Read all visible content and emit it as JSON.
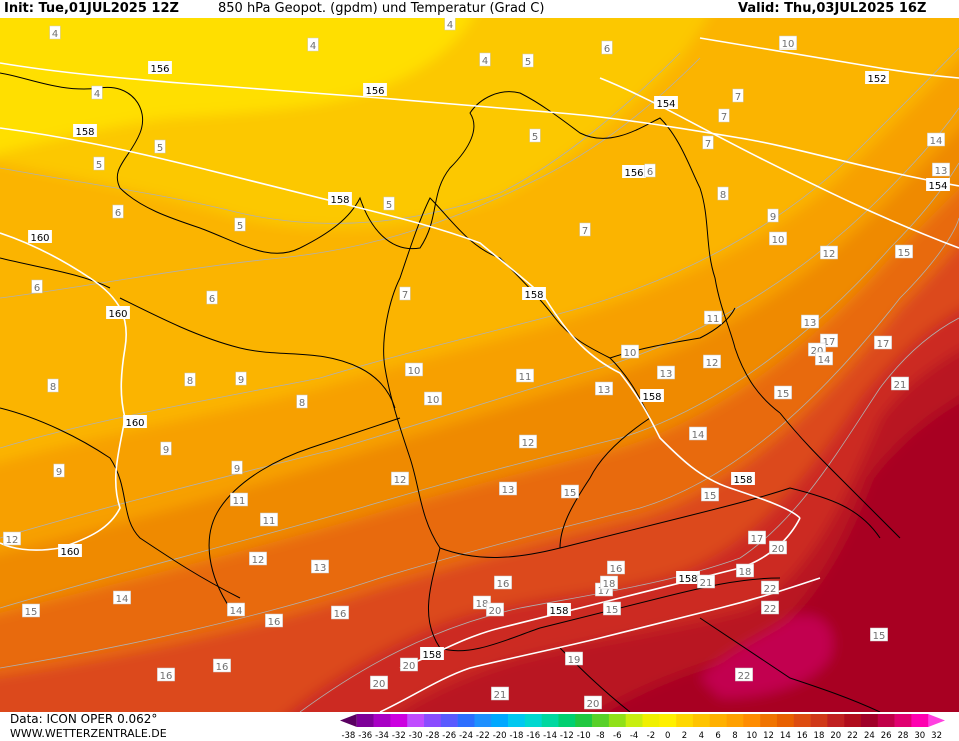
{
  "header": {
    "init": "Init: Tue,01JUL2025 12Z",
    "title": "850 hPa Geopot. (gpdm) und Temperatur (Grad C)",
    "valid": "Valid: Thu,03JUL2025 16Z"
  },
  "footer": {
    "data_source": "Data: ICON OPER 0.062°",
    "website": "WWW.WETTERZENTRALE.DE"
  },
  "legend": {
    "ticks": [
      "-38",
      "-36",
      "-34",
      "-32",
      "-30",
      "-28",
      "-26",
      "-24",
      "-22",
      "-20",
      "-18",
      "-16",
      "-14",
      "-12",
      "-10",
      "-8",
      "-6",
      "-4",
      "-2",
      "0",
      "2",
      "4",
      "6",
      "8",
      "10",
      "12",
      "14",
      "16",
      "18",
      "20",
      "22",
      "24",
      "26",
      "28",
      "30",
      "32"
    ],
    "colors": [
      "#5a0061",
      "#7e0098",
      "#a800c4",
      "#cc00e0",
      "#c04cff",
      "#8a4cff",
      "#5a5aff",
      "#2c6eff",
      "#1e90ff",
      "#00a8ff",
      "#00c8f0",
      "#00d8d0",
      "#00d8a0",
      "#00d070",
      "#20c840",
      "#58d028",
      "#90e018",
      "#c8ee10",
      "#f0f000",
      "#fff000",
      "#ffd800",
      "#ffc400",
      "#ffb000",
      "#ffa000",
      "#ff8c00",
      "#f07400",
      "#e86000",
      "#dd4c10",
      "#d03818",
      "#c02020",
      "#b00c1c",
      "#a00028",
      "#c00048",
      "#e00070",
      "#ff00b0",
      "#ff40e0"
    ]
  },
  "map": {
    "colors": {
      "t_4": "#ffdf00",
      "t_5": "#fcc800",
      "t_7": "#fbb400",
      "t_9": "#f7a000",
      "t_11": "#ef8a00",
      "t_13": "#e86a10",
      "t_15": "#dc4a1c",
      "t_17": "#cc2a20",
      "t_19": "#b91220",
      "t_21": "#a80024",
      "t_23": "#c20050",
      "geopotential_line": "#ffffff",
      "border": "#000000",
      "isotherm": "#b0b0b0"
    },
    "geopotential_labels": [
      "156",
      "156",
      "158",
      "158",
      "160",
      "160",
      "160",
      "160",
      "10",
      "154",
      "152",
      "154",
      "156",
      "158",
      "158",
      "158",
      "158",
      "158",
      "158"
    ],
    "temperature_labels": [
      "4",
      "4",
      "4",
      "4",
      "4",
      "5",
      "5",
      "5",
      "5",
      "5",
      "5",
      "6",
      "6",
      "6",
      "6",
      "6",
      "7",
      "7",
      "7",
      "7",
      "7",
      "8",
      "8",
      "8",
      "8",
      "9",
      "9",
      "9",
      "9",
      "9",
      "10",
      "10",
      "10",
      "10",
      "10",
      "11",
      "11",
      "11",
      "11",
      "12",
      "12",
      "12",
      "12",
      "12",
      "12",
      "13",
      "13",
      "13",
      "13",
      "13",
      "14",
      "14",
      "14",
      "14",
      "15",
      "15",
      "15",
      "15",
      "15",
      "16",
      "16",
      "16",
      "16",
      "17",
      "17",
      "17",
      "17",
      "18",
      "18",
      "18",
      "19",
      "20",
      "20",
      "20",
      "20",
      "20",
      "20",
      "21",
      "21",
      "21",
      "22",
      "22",
      "22",
      "15",
      "13",
      "14",
      "15",
      "16",
      "16"
    ]
  }
}
